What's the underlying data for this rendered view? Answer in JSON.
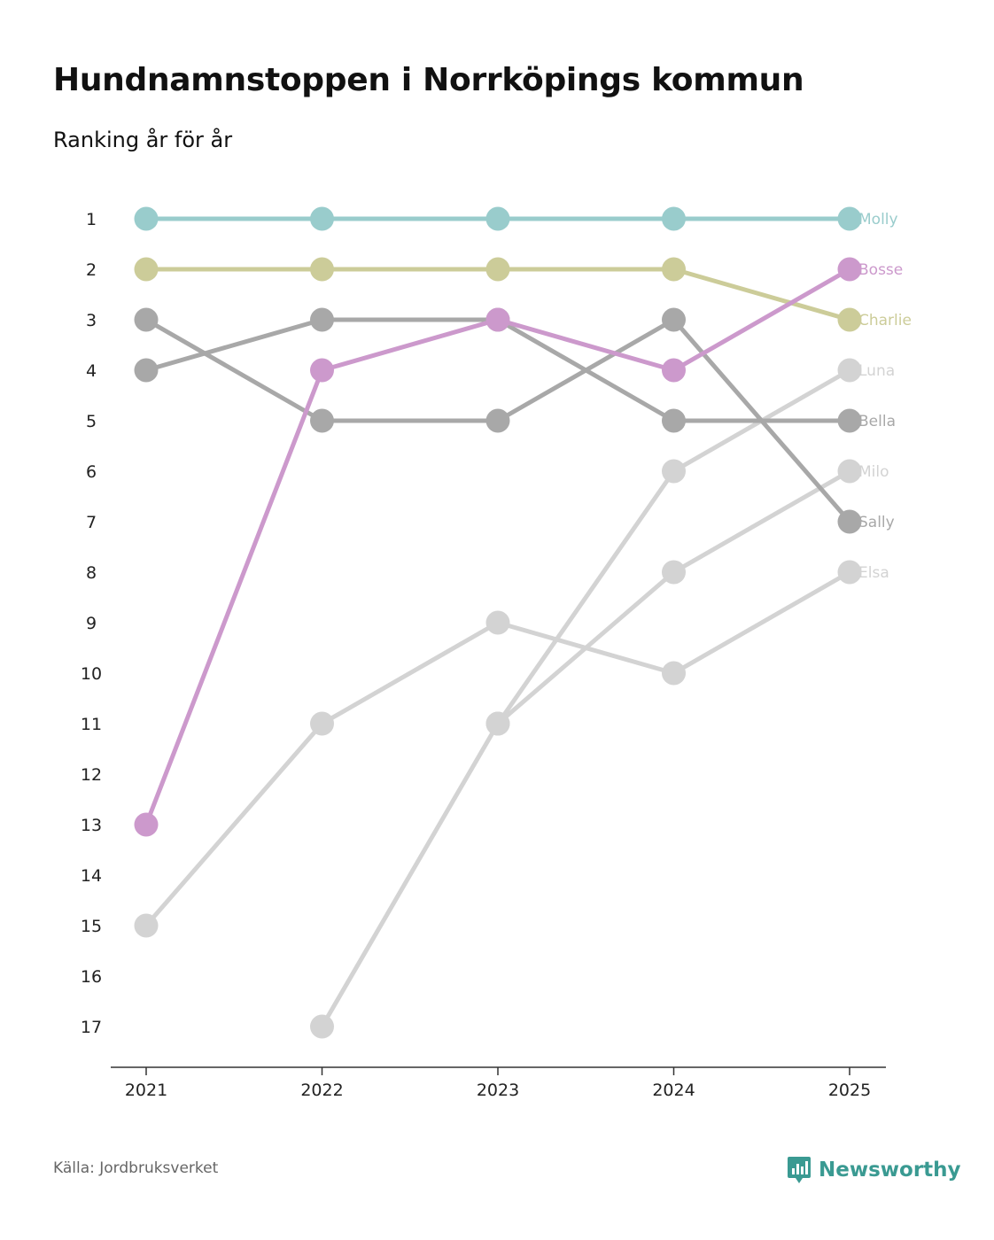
{
  "title": "Hundnamnstoppen i Norrköpings kommun",
  "subtitle": "Ranking år för år",
  "source": "Källa: Jordbruksverket",
  "brand": {
    "name": "Newsworthy",
    "icon": "newsworthy-logo-icon",
    "color": "#3a9a92"
  },
  "chart_data": {
    "type": "line",
    "chart_style": "bump",
    "title": "Hundnamnstoppen i Norrköpings kommun",
    "subtitle": "Ranking år för år",
    "xlabel": "",
    "ylabel": "",
    "x": [
      "2021",
      "2022",
      "2023",
      "2024",
      "2025"
    ],
    "y_ticks": [
      "1",
      "2",
      "3",
      "4",
      "5",
      "6",
      "7",
      "8",
      "9",
      "10",
      "11",
      "12",
      "13",
      "14",
      "15",
      "16",
      "17"
    ],
    "ylim": [
      1,
      17
    ],
    "y_inverted": true,
    "grid": false,
    "series": [
      {
        "name": "Elsa",
        "color": "#d3d3d3",
        "values": [
          15,
          11,
          9,
          10,
          8
        ]
      },
      {
        "name": "Milo",
        "color": "#d3d3d3",
        "values": [
          null,
          null,
          11,
          8,
          6
        ]
      },
      {
        "name": "Luna",
        "color": "#d3d3d3",
        "values": [
          null,
          17,
          11,
          6,
          4
        ]
      },
      {
        "name": "Sally",
        "color": "#a8a8a8",
        "values": [
          3,
          5,
          5,
          3,
          7
        ]
      },
      {
        "name": "Bella",
        "color": "#a8a8a8",
        "values": [
          4,
          3,
          3,
          5,
          5
        ]
      },
      {
        "name": "Charlie",
        "color": "#cccc99",
        "values": [
          2,
          2,
          2,
          2,
          3
        ]
      },
      {
        "name": "Molly",
        "color": "#99cccc",
        "values": [
          1,
          1,
          1,
          1,
          1
        ]
      },
      {
        "name": "Bosse",
        "color": "#cc99cc",
        "values": [
          13,
          4,
          3,
          4,
          2
        ]
      }
    ]
  }
}
